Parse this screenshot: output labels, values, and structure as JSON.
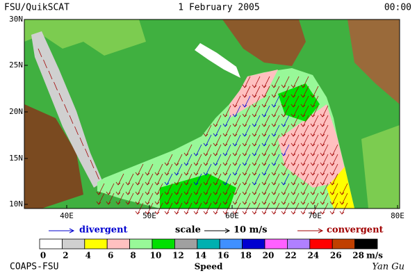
{
  "header": {
    "source": "FSU/QuikSCAT",
    "date": "1 February 2005",
    "time": "00:00"
  },
  "map": {
    "lat_labels": [
      "30N",
      "25N",
      "20N",
      "15N",
      "10N"
    ],
    "lon_labels": [
      "40E",
      "50E",
      "60E",
      "70E",
      "80E"
    ]
  },
  "legend": {
    "divergent": "divergent",
    "scale": "scale",
    "scale_value": "10 m/s",
    "convergent": "convergent"
  },
  "colorbar": {
    "labels": [
      0,
      2,
      4,
      6,
      8,
      10,
      12,
      14,
      16,
      18,
      20,
      22,
      24,
      26,
      28
    ],
    "colors": [
      "#ffffff",
      "#d0d0d0",
      "#ffff00",
      "#ffc0c0",
      "#98f898",
      "#00e000",
      "#a0a0a0",
      "#00b0b0",
      "#4090ff",
      "#0000d0",
      "#ff60ff",
      "#b080ff",
      "#ff0000",
      "#c04000",
      "#000000"
    ],
    "unit": "m/s",
    "title": "Speed"
  },
  "footer": {
    "left": "COAPS-FSU",
    "right": "Yan Gu"
  }
}
